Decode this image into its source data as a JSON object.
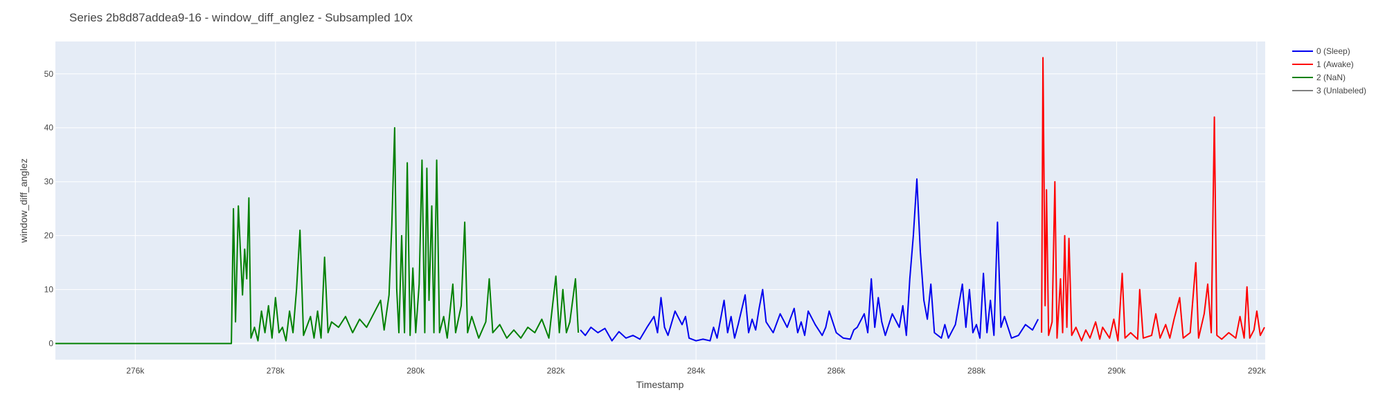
{
  "chart_data": {
    "type": "line",
    "title": "Series 2b8d87addea9-16 - window_diff_anglez - Subsampled 10x",
    "xlabel": "Timestamp",
    "ylabel": "window_diff_anglez",
    "xlim": [
      274860,
      292120
    ],
    "ylim": [
      -3,
      56
    ],
    "x_ticks": [
      {
        "value": 276000,
        "label": "276k"
      },
      {
        "value": 278000,
        "label": "278k"
      },
      {
        "value": 280000,
        "label": "280k"
      },
      {
        "value": 282000,
        "label": "282k"
      },
      {
        "value": 284000,
        "label": "284k"
      },
      {
        "value": 286000,
        "label": "286k"
      },
      {
        "value": 288000,
        "label": "288k"
      },
      {
        "value": 290000,
        "label": "290k"
      },
      {
        "value": 292000,
        "label": "292k"
      }
    ],
    "y_ticks": [
      {
        "value": 0,
        "label": "0"
      },
      {
        "value": 10,
        "label": "10"
      },
      {
        "value": 20,
        "label": "20"
      },
      {
        "value": 30,
        "label": "30"
      },
      {
        "value": 40,
        "label": "40"
      },
      {
        "value": 50,
        "label": "50"
      }
    ],
    "grid": true,
    "legend_position": "top-right",
    "plot_background": "#e5ecf6",
    "series": [
      {
        "name": "0 (Sleep)",
        "color": "#0000ee",
        "points": [
          [
            282350,
            2.5
          ],
          [
            282420,
            1.5
          ],
          [
            282500,
            3.0
          ],
          [
            282600,
            2.0
          ],
          [
            282700,
            2.8
          ],
          [
            282800,
            0.5
          ],
          [
            282900,
            2.2
          ],
          [
            283000,
            1.0
          ],
          [
            283100,
            1.5
          ],
          [
            283200,
            0.8
          ],
          [
            283300,
            3.0
          ],
          [
            283400,
            5.0
          ],
          [
            283450,
            2.0
          ],
          [
            283500,
            8.5
          ],
          [
            283550,
            3.0
          ],
          [
            283600,
            1.5
          ],
          [
            283700,
            6.0
          ],
          [
            283800,
            3.5
          ],
          [
            283850,
            5.0
          ],
          [
            283900,
            1.0
          ],
          [
            284000,
            0.5
          ],
          [
            284100,
            0.8
          ],
          [
            284200,
            0.5
          ],
          [
            284250,
            3.0
          ],
          [
            284300,
            1.0
          ],
          [
            284400,
            8.0
          ],
          [
            284450,
            2.0
          ],
          [
            284500,
            5.0
          ],
          [
            284550,
            1.0
          ],
          [
            284600,
            3.5
          ],
          [
            284700,
            9.0
          ],
          [
            284750,
            2.0
          ],
          [
            284800,
            4.5
          ],
          [
            284850,
            2.5
          ],
          [
            284900,
            6.5
          ],
          [
            284950,
            10.0
          ],
          [
            285000,
            4.0
          ],
          [
            285100,
            2.0
          ],
          [
            285200,
            5.5
          ],
          [
            285300,
            3.0
          ],
          [
            285400,
            6.5
          ],
          [
            285450,
            2.0
          ],
          [
            285500,
            4.0
          ],
          [
            285550,
            1.5
          ],
          [
            285600,
            6.0
          ],
          [
            285700,
            3.5
          ],
          [
            285800,
            1.5
          ],
          [
            285850,
            3.0
          ],
          [
            285900,
            6.0
          ],
          [
            286000,
            2.0
          ],
          [
            286100,
            1.0
          ],
          [
            286200,
            0.8
          ],
          [
            286250,
            2.5
          ],
          [
            286300,
            3.0
          ],
          [
            286400,
            5.5
          ],
          [
            286450,
            2.0
          ],
          [
            286500,
            12.0
          ],
          [
            286550,
            3.0
          ],
          [
            286600,
            8.5
          ],
          [
            286650,
            4.0
          ],
          [
            286700,
            1.5
          ],
          [
            286800,
            5.5
          ],
          [
            286900,
            3.0
          ],
          [
            286950,
            7.0
          ],
          [
            287000,
            1.5
          ],
          [
            287050,
            12.0
          ],
          [
            287100,
            20.0
          ],
          [
            287150,
            30.5
          ],
          [
            287200,
            17.0
          ],
          [
            287250,
            8.0
          ],
          [
            287300,
            4.5
          ],
          [
            287350,
            11.0
          ],
          [
            287400,
            2.0
          ],
          [
            287500,
            1.0
          ],
          [
            287550,
            3.5
          ],
          [
            287600,
            1.0
          ],
          [
            287700,
            3.5
          ],
          [
            287800,
            11.0
          ],
          [
            287850,
            3.0
          ],
          [
            287900,
            10.0
          ],
          [
            287950,
            2.0
          ],
          [
            288000,
            3.5
          ],
          [
            288050,
            1.0
          ],
          [
            288100,
            13.0
          ],
          [
            288150,
            2.0
          ],
          [
            288200,
            8.0
          ],
          [
            288250,
            1.5
          ],
          [
            288300,
            22.5
          ],
          [
            288350,
            3.0
          ],
          [
            288400,
            5.0
          ],
          [
            288500,
            1.0
          ],
          [
            288600,
            1.5
          ],
          [
            288700,
            3.5
          ],
          [
            288800,
            2.5
          ],
          [
            288880,
            4.5
          ]
        ]
      },
      {
        "name": "1 (Awake)",
        "color": "#ff0000",
        "points": [
          [
            288930,
            2.0
          ],
          [
            288950,
            53.0
          ],
          [
            288980,
            7.0
          ],
          [
            289000,
            28.5
          ],
          [
            289030,
            1.5
          ],
          [
            289080,
            4.0
          ],
          [
            289120,
            30.0
          ],
          [
            289150,
            1.0
          ],
          [
            289200,
            12.0
          ],
          [
            289230,
            2.0
          ],
          [
            289260,
            20.0
          ],
          [
            289290,
            3.0
          ],
          [
            289320,
            19.5
          ],
          [
            289360,
            1.5
          ],
          [
            289420,
            3.0
          ],
          [
            289500,
            0.5
          ],
          [
            289560,
            2.5
          ],
          [
            289620,
            1.0
          ],
          [
            289700,
            4.0
          ],
          [
            289760,
            0.8
          ],
          [
            289800,
            3.0
          ],
          [
            289900,
            1.0
          ],
          [
            289960,
            4.5
          ],
          [
            290020,
            0.5
          ],
          [
            290080,
            13.0
          ],
          [
            290120,
            1.0
          ],
          [
            290200,
            2.0
          ],
          [
            290300,
            0.8
          ],
          [
            290330,
            10.0
          ],
          [
            290380,
            1.0
          ],
          [
            290500,
            1.5
          ],
          [
            290560,
            5.5
          ],
          [
            290620,
            1.0
          ],
          [
            290700,
            3.5
          ],
          [
            290760,
            1.0
          ],
          [
            290820,
            4.5
          ],
          [
            290900,
            8.5
          ],
          [
            290950,
            1.0
          ],
          [
            291050,
            2.0
          ],
          [
            291130,
            15.0
          ],
          [
            291170,
            1.0
          ],
          [
            291250,
            5.5
          ],
          [
            291300,
            11.0
          ],
          [
            291350,
            2.0
          ],
          [
            291395,
            42.0
          ],
          [
            291430,
            1.5
          ],
          [
            291500,
            0.8
          ],
          [
            291600,
            2.0
          ],
          [
            291700,
            1.0
          ],
          [
            291760,
            5.0
          ],
          [
            291820,
            1.0
          ],
          [
            291860,
            10.5
          ],
          [
            291900,
            1.0
          ],
          [
            291960,
            2.5
          ],
          [
            292000,
            6.0
          ],
          [
            292050,
            1.5
          ],
          [
            292110,
            3.0
          ]
        ]
      },
      {
        "name": "2 (NaN)",
        "color": "#008000",
        "points": [
          [
            274860,
            0.0
          ],
          [
            277370,
            0.0
          ],
          [
            277400,
            25.0
          ],
          [
            277430,
            4.0
          ],
          [
            277470,
            25.5
          ],
          [
            277500,
            17.0
          ],
          [
            277530,
            9.0
          ],
          [
            277560,
            17.5
          ],
          [
            277590,
            12.0
          ],
          [
            277620,
            27.0
          ],
          [
            277650,
            1.0
          ],
          [
            277700,
            3.0
          ],
          [
            277750,
            0.5
          ],
          [
            277800,
            6.0
          ],
          [
            277850,
            2.0
          ],
          [
            277900,
            7.0
          ],
          [
            277950,
            1.0
          ],
          [
            278000,
            8.5
          ],
          [
            278050,
            2.0
          ],
          [
            278100,
            3.0
          ],
          [
            278150,
            0.5
          ],
          [
            278200,
            6.0
          ],
          [
            278250,
            2.0
          ],
          [
            278300,
            10.0
          ],
          [
            278350,
            21.0
          ],
          [
            278400,
            1.5
          ],
          [
            278500,
            5.0
          ],
          [
            278550,
            1.0
          ],
          [
            278600,
            6.0
          ],
          [
            278650,
            1.0
          ],
          [
            278700,
            16.0
          ],
          [
            278750,
            2.0
          ],
          [
            278800,
            4.0
          ],
          [
            278900,
            3.0
          ],
          [
            279000,
            5.0
          ],
          [
            279100,
            2.0
          ],
          [
            279200,
            4.5
          ],
          [
            279300,
            3.0
          ],
          [
            279400,
            5.5
          ],
          [
            279500,
            8.0
          ],
          [
            279550,
            2.5
          ],
          [
            279620,
            9.0
          ],
          [
            279660,
            22.0
          ],
          [
            279700,
            40.0
          ],
          [
            279730,
            10.0
          ],
          [
            279760,
            2.0
          ],
          [
            279800,
            20.0
          ],
          [
            279840,
            2.0
          ],
          [
            279880,
            33.5
          ],
          [
            279920,
            1.5
          ],
          [
            279960,
            14.0
          ],
          [
            280000,
            2.0
          ],
          [
            280050,
            11.0
          ],
          [
            280090,
            34.0
          ],
          [
            280130,
            2.0
          ],
          [
            280160,
            32.5
          ],
          [
            280190,
            8.0
          ],
          [
            280230,
            25.5
          ],
          [
            280260,
            2.0
          ],
          [
            280300,
            34.0
          ],
          [
            280340,
            2.0
          ],
          [
            280400,
            5.0
          ],
          [
            280450,
            1.0
          ],
          [
            280530,
            11.0
          ],
          [
            280570,
            2.0
          ],
          [
            280650,
            7.0
          ],
          [
            280700,
            22.5
          ],
          [
            280740,
            2.0
          ],
          [
            280800,
            5.0
          ],
          [
            280900,
            1.0
          ],
          [
            281000,
            4.0
          ],
          [
            281050,
            12.0
          ],
          [
            281100,
            2.0
          ],
          [
            281200,
            3.5
          ],
          [
            281300,
            1.0
          ],
          [
            281400,
            2.5
          ],
          [
            281500,
            1.0
          ],
          [
            281600,
            3.0
          ],
          [
            281700,
            2.0
          ],
          [
            281800,
            4.5
          ],
          [
            281900,
            1.0
          ],
          [
            282000,
            12.5
          ],
          [
            282050,
            2.0
          ],
          [
            282100,
            10.0
          ],
          [
            282150,
            2.0
          ],
          [
            282200,
            4.0
          ],
          [
            282280,
            12.0
          ],
          [
            282320,
            2.0
          ]
        ]
      },
      {
        "name": "3 (Unlabeled)",
        "color": "#808080",
        "points": []
      }
    ]
  }
}
